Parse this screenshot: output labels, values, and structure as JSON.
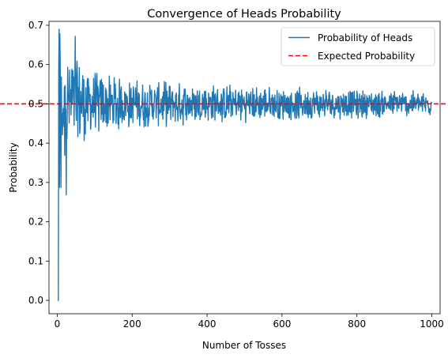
{
  "chart_data": {
    "type": "line",
    "title": "Convergence of Heads Probability",
    "xlabel": "Number of Tosses",
    "ylabel": "Probability",
    "xlim": [
      -22,
      1022
    ],
    "ylim": [
      -0.034,
      0.71
    ],
    "xticks": [
      0,
      200,
      400,
      600,
      800,
      1000
    ],
    "yticks": [
      0.0,
      0.1,
      0.2,
      0.3,
      0.4,
      0.5,
      0.6,
      0.7
    ],
    "xtick_labels": [
      "0",
      "200",
      "400",
      "600",
      "800",
      "1000"
    ],
    "ytick_labels": [
      "0.0",
      "0.1",
      "0.2",
      "0.3",
      "0.4",
      "0.5",
      "0.6",
      "0.7"
    ],
    "legend": [
      "Probability of Heads",
      "Expected Probability"
    ],
    "legend_position": "top-right",
    "series": [
      {
        "name": "Probability of Heads",
        "color": "#1f77b4",
        "style": "solid",
        "description": "noisy simulated proportion starting at 0.0 near x=0, spiking to ~0.67 around x=50, then oscillating around 0.5 with decreasing amplitude (about ±0.05 by x=1000)",
        "x_range": [
          1,
          1000
        ],
        "start_value": 0.0,
        "peak": {
          "x": 48,
          "y": 0.672
        },
        "envelope_x": [
          1,
          10,
          30,
          60,
          100,
          200,
          400,
          600,
          800,
          1000
        ],
        "envelope_amp": [
          0.5,
          0.22,
          0.16,
          0.13,
          0.09,
          0.065,
          0.055,
          0.045,
          0.04,
          0.035
        ]
      },
      {
        "name": "Expected Probability",
        "color": "#ff0000",
        "style": "dashed",
        "y": 0.5
      }
    ]
  }
}
